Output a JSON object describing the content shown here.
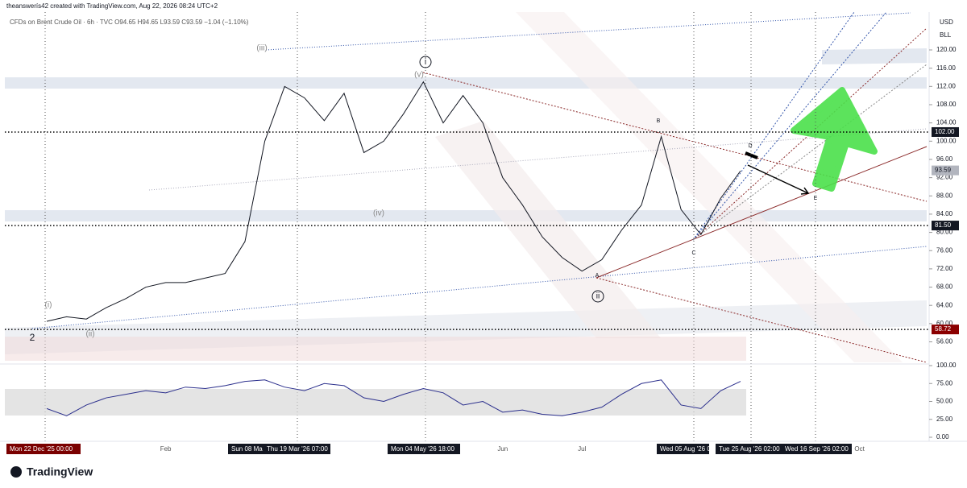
{
  "header": "theanswerís42 created with TradingView.com, Aug 22, 2026 08:24 UTC+2",
  "legend": "CFDs on Brent Crude Oil · 6h · TVC  O94.65 H94.65 L93.59 C93.59 −1.04 (−1.10%)",
  "currency": "USD",
  "unit": "BLL",
  "brand": "TradingView",
  "time_labels": [
    "Mon 22 Dec '25  00:00",
    "Sun 08 Ma",
    "Thu 19 Mar '26  07:00",
    "Mon 04 May '26  18:00",
    "Wed 05 Aug '26  0",
    "Tue 25 Aug '26  02:00",
    "Wed 16 Sep '26  02:00"
  ],
  "chart_data": [
    {
      "type": "line",
      "categories": [
        null,
        null,
        null,
        null,
        null,
        null,
        "Feb",
        null,
        null,
        null,
        null,
        null,
        null,
        null,
        null,
        null,
        null,
        null,
        null,
        null,
        null,
        null,
        null,
        "Jun",
        null,
        null,
        null,
        "Jul",
        null,
        null,
        null,
        null,
        null,
        null,
        null,
        null,
        null,
        null,
        null,
        null,
        null,
        "Oct",
        null,
        null,
        null
      ],
      "series": [
        {
          "color": "#131722",
          "values": [
            60.5,
            61.5,
            61,
            63.5,
            65.5,
            68,
            69,
            69,
            70,
            71,
            78,
            100,
            112,
            109.5,
            104.5,
            110.5,
            97.5,
            100,
            106,
            113,
            104,
            110,
            104,
            92,
            86,
            79,
            74.5,
            71.5,
            74,
            80.5,
            86,
            101,
            85,
            79.5,
            87.5,
            93.5,
            null,
            null,
            null,
            null,
            null,
            null,
            null,
            null,
            null
          ]
        }
      ],
      "ylim": [
        51.5,
        128.3
      ],
      "yticks": [
        {
          "value": 56,
          "label": "56.00"
        },
        {
          "value": 60,
          "label": "60.00"
        },
        {
          "value": 64,
          "label": "64.00"
        },
        {
          "value": 68,
          "label": "68.00"
        },
        {
          "value": 72,
          "label": "72.00"
        },
        {
          "value": 76,
          "label": "76.00"
        },
        {
          "value": 80,
          "label": "80.00"
        },
        {
          "value": 84,
          "label": "84.00"
        },
        {
          "value": 88,
          "label": "88.00"
        },
        {
          "value": 92,
          "label": "92.00"
        },
        {
          "value": 96,
          "label": "96.00"
        },
        {
          "value": 100,
          "label": "100.00"
        },
        {
          "value": 104,
          "label": "104.00"
        },
        {
          "value": 108,
          "label": "108.00"
        },
        {
          "value": 112,
          "label": "112.00"
        },
        {
          "value": 116,
          "label": "116.00"
        },
        {
          "value": 120,
          "label": "120.00"
        }
      ],
      "price_labels": [
        {
          "value": 102,
          "label": "102.00"
        },
        {
          "value": 93.59,
          "label": "93.59"
        },
        {
          "value": 81.5,
          "label": "81.50"
        },
        {
          "value": 58.72,
          "label": "58.72"
        }
      ],
      "wave_labels": [
        "(iii)",
        "i",
        "(v)",
        "(iv)",
        "(i)",
        "(ii)",
        "2",
        "ii",
        "A",
        "B",
        "C",
        "D",
        "E"
      ]
    },
    {
      "type": "line",
      "series": [
        {
          "color": "#2a2e8c",
          "values": [
            40,
            30,
            45,
            55,
            60,
            65,
            62,
            70,
            68,
            72,
            78,
            80,
            70,
            65,
            75,
            72,
            55,
            50,
            60,
            68,
            62,
            45,
            50,
            35,
            38,
            32,
            30,
            35,
            42,
            60,
            75,
            80,
            45,
            40,
            65,
            78
          ]
        }
      ],
      "ylim": [
        0,
        100
      ],
      "yticks": [
        {
          "value": 0,
          "label": "0.00"
        },
        {
          "value": 25,
          "label": "25.00"
        },
        {
          "value": 50,
          "label": "50.00"
        },
        {
          "value": 75,
          "label": "75.00"
        },
        {
          "value": 100,
          "label": "100.00"
        }
      ]
    }
  ]
}
